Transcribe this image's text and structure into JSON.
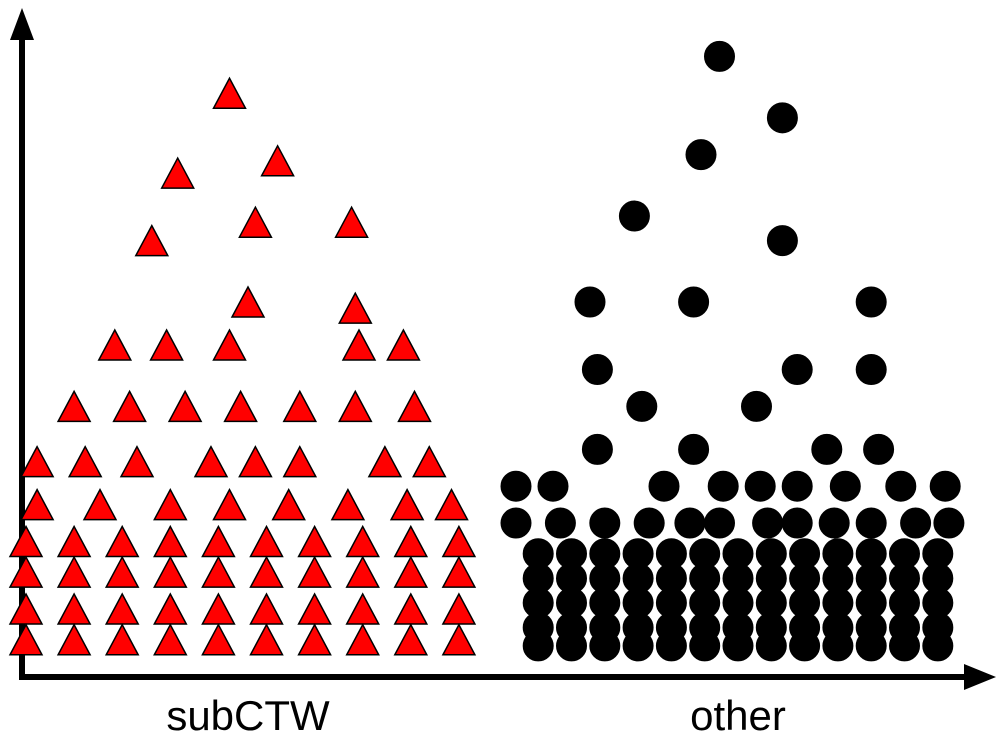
{
  "chart_data": {
    "type": "scatter",
    "title": "",
    "xlabel": "",
    "ylabel": "",
    "categories": [
      "subCTW",
      "other"
    ],
    "ylim": [
      0,
      100
    ],
    "grid": false,
    "legend": "none",
    "axes": {
      "y_ticks_shown": false,
      "x_arrow": true,
      "y_arrow": true
    },
    "series": [
      {
        "category": "subCTW",
        "marker": "triangle",
        "color": "#ff0000",
        "edge_color": "#000000",
        "points": [
          {
            "x": -0.05,
            "y": 91
          },
          {
            "x": -0.19,
            "y": 78
          },
          {
            "x": 0.08,
            "y": 80
          },
          {
            "x": -0.26,
            "y": 67
          },
          {
            "x": 0.02,
            "y": 70
          },
          {
            "x": 0.28,
            "y": 70
          },
          {
            "x": 0.0,
            "y": 57
          },
          {
            "x": 0.29,
            "y": 56
          },
          {
            "x": -0.36,
            "y": 50
          },
          {
            "x": -0.22,
            "y": 50
          },
          {
            "x": -0.05,
            "y": 50
          },
          {
            "x": 0.3,
            "y": 50
          },
          {
            "x": 0.42,
            "y": 50
          },
          {
            "x": -0.47,
            "y": 40
          },
          {
            "x": -0.32,
            "y": 40
          },
          {
            "x": -0.17,
            "y": 40
          },
          {
            "x": -0.02,
            "y": 40
          },
          {
            "x": 0.14,
            "y": 40
          },
          {
            "x": 0.29,
            "y": 40
          },
          {
            "x": 0.45,
            "y": 40
          },
          {
            "x": -0.57,
            "y": 31
          },
          {
            "x": -0.44,
            "y": 31
          },
          {
            "x": -0.3,
            "y": 31
          },
          {
            "x": -0.1,
            "y": 31
          },
          {
            "x": 0.02,
            "y": 31
          },
          {
            "x": 0.14,
            "y": 31
          },
          {
            "x": 0.37,
            "y": 31
          },
          {
            "x": 0.49,
            "y": 31
          },
          {
            "x": -0.57,
            "y": 24
          },
          {
            "x": -0.4,
            "y": 24
          },
          {
            "x": -0.21,
            "y": 24
          },
          {
            "x": -0.05,
            "y": 24
          },
          {
            "x": 0.11,
            "y": 24
          },
          {
            "x": 0.27,
            "y": 24
          },
          {
            "x": 0.43,
            "y": 24
          },
          {
            "x": 0.55,
            "y": 24
          },
          {
            "x": -0.6,
            "y": 18
          },
          {
            "x": -0.47,
            "y": 18
          },
          {
            "x": -0.34,
            "y": 18
          },
          {
            "x": -0.21,
            "y": 18
          },
          {
            "x": -0.08,
            "y": 18
          },
          {
            "x": 0.05,
            "y": 18
          },
          {
            "x": 0.18,
            "y": 18
          },
          {
            "x": 0.31,
            "y": 18
          },
          {
            "x": 0.44,
            "y": 18
          },
          {
            "x": 0.57,
            "y": 18
          },
          {
            "x": -0.6,
            "y": 13
          },
          {
            "x": -0.47,
            "y": 13
          },
          {
            "x": -0.34,
            "y": 13
          },
          {
            "x": -0.21,
            "y": 13
          },
          {
            "x": -0.08,
            "y": 13
          },
          {
            "x": 0.05,
            "y": 13
          },
          {
            "x": 0.18,
            "y": 13
          },
          {
            "x": 0.31,
            "y": 13
          },
          {
            "x": 0.44,
            "y": 13
          },
          {
            "x": 0.57,
            "y": 13
          },
          {
            "x": -0.6,
            "y": 7
          },
          {
            "x": -0.47,
            "y": 7
          },
          {
            "x": -0.34,
            "y": 7
          },
          {
            "x": -0.21,
            "y": 7
          },
          {
            "x": -0.08,
            "y": 7
          },
          {
            "x": 0.05,
            "y": 7
          },
          {
            "x": 0.18,
            "y": 7
          },
          {
            "x": 0.31,
            "y": 7
          },
          {
            "x": 0.44,
            "y": 7
          },
          {
            "x": 0.57,
            "y": 7
          },
          {
            "x": -0.6,
            "y": 2
          },
          {
            "x": -0.47,
            "y": 2
          },
          {
            "x": -0.34,
            "y": 2
          },
          {
            "x": -0.21,
            "y": 2
          },
          {
            "x": -0.08,
            "y": 2
          },
          {
            "x": 0.05,
            "y": 2
          },
          {
            "x": 0.18,
            "y": 2
          },
          {
            "x": 0.31,
            "y": 2
          },
          {
            "x": 0.44,
            "y": 2
          },
          {
            "x": 0.57,
            "y": 2
          }
        ]
      },
      {
        "category": "other",
        "marker": "circle",
        "color": "#000000",
        "edge_color": "#000000",
        "points": [
          {
            "x": -0.05,
            "y": 97
          },
          {
            "x": 0.12,
            "y": 87
          },
          {
            "x": -0.1,
            "y": 81
          },
          {
            "x": -0.28,
            "y": 71
          },
          {
            "x": 0.12,
            "y": 67
          },
          {
            "x": -0.4,
            "y": 57
          },
          {
            "x": -0.12,
            "y": 57
          },
          {
            "x": 0.36,
            "y": 57
          },
          {
            "x": -0.38,
            "y": 46
          },
          {
            "x": 0.16,
            "y": 46
          },
          {
            "x": 0.36,
            "y": 46
          },
          {
            "x": -0.26,
            "y": 40
          },
          {
            "x": 0.05,
            "y": 40
          },
          {
            "x": -0.38,
            "y": 33
          },
          {
            "x": -0.12,
            "y": 33
          },
          {
            "x": 0.24,
            "y": 33
          },
          {
            "x": 0.38,
            "y": 33
          },
          {
            "x": -0.6,
            "y": 27
          },
          {
            "x": -0.5,
            "y": 27
          },
          {
            "x": -0.2,
            "y": 27
          },
          {
            "x": -0.04,
            "y": 27
          },
          {
            "x": 0.06,
            "y": 27
          },
          {
            "x": 0.16,
            "y": 27
          },
          {
            "x": 0.29,
            "y": 27
          },
          {
            "x": 0.44,
            "y": 27
          },
          {
            "x": 0.56,
            "y": 27
          },
          {
            "x": -0.6,
            "y": 21
          },
          {
            "x": -0.48,
            "y": 21
          },
          {
            "x": -0.36,
            "y": 21
          },
          {
            "x": -0.24,
            "y": 21
          },
          {
            "x": -0.13,
            "y": 21
          },
          {
            "x": -0.05,
            "y": 21
          },
          {
            "x": 0.08,
            "y": 21
          },
          {
            "x": 0.16,
            "y": 21
          },
          {
            "x": 0.26,
            "y": 21
          },
          {
            "x": 0.36,
            "y": 21
          },
          {
            "x": 0.48,
            "y": 21
          },
          {
            "x": 0.57,
            "y": 21
          },
          {
            "x": -0.54,
            "y": 16
          },
          {
            "x": -0.45,
            "y": 16
          },
          {
            "x": -0.36,
            "y": 16
          },
          {
            "x": -0.27,
            "y": 16
          },
          {
            "x": -0.18,
            "y": 16
          },
          {
            "x": -0.09,
            "y": 16
          },
          {
            "x": 0.0,
            "y": 16
          },
          {
            "x": 0.09,
            "y": 16
          },
          {
            "x": 0.18,
            "y": 16
          },
          {
            "x": 0.27,
            "y": 16
          },
          {
            "x": 0.36,
            "y": 16
          },
          {
            "x": 0.45,
            "y": 16
          },
          {
            "x": 0.54,
            "y": 16
          },
          {
            "x": -0.54,
            "y": 12
          },
          {
            "x": -0.45,
            "y": 12
          },
          {
            "x": -0.36,
            "y": 12
          },
          {
            "x": -0.27,
            "y": 12
          },
          {
            "x": -0.18,
            "y": 12
          },
          {
            "x": -0.09,
            "y": 12
          },
          {
            "x": 0.0,
            "y": 12
          },
          {
            "x": 0.09,
            "y": 12
          },
          {
            "x": 0.18,
            "y": 12
          },
          {
            "x": 0.27,
            "y": 12
          },
          {
            "x": 0.36,
            "y": 12
          },
          {
            "x": 0.45,
            "y": 12
          },
          {
            "x": 0.54,
            "y": 12
          },
          {
            "x": -0.54,
            "y": 8
          },
          {
            "x": -0.45,
            "y": 8
          },
          {
            "x": -0.36,
            "y": 8
          },
          {
            "x": -0.27,
            "y": 8
          },
          {
            "x": -0.18,
            "y": 8
          },
          {
            "x": -0.09,
            "y": 8
          },
          {
            "x": 0.0,
            "y": 8
          },
          {
            "x": 0.09,
            "y": 8
          },
          {
            "x": 0.18,
            "y": 8
          },
          {
            "x": 0.27,
            "y": 8
          },
          {
            "x": 0.36,
            "y": 8
          },
          {
            "x": 0.45,
            "y": 8
          },
          {
            "x": 0.54,
            "y": 8
          },
          {
            "x": -0.54,
            "y": 4
          },
          {
            "x": -0.45,
            "y": 4
          },
          {
            "x": -0.36,
            "y": 4
          },
          {
            "x": -0.27,
            "y": 4
          },
          {
            "x": -0.18,
            "y": 4
          },
          {
            "x": -0.09,
            "y": 4
          },
          {
            "x": 0.0,
            "y": 4
          },
          {
            "x": 0.09,
            "y": 4
          },
          {
            "x": 0.18,
            "y": 4
          },
          {
            "x": 0.27,
            "y": 4
          },
          {
            "x": 0.36,
            "y": 4
          },
          {
            "x": 0.45,
            "y": 4
          },
          {
            "x": 0.54,
            "y": 4
          },
          {
            "x": -0.54,
            "y": 1
          },
          {
            "x": -0.45,
            "y": 1
          },
          {
            "x": -0.36,
            "y": 1
          },
          {
            "x": -0.27,
            "y": 1
          },
          {
            "x": -0.18,
            "y": 1
          },
          {
            "x": -0.09,
            "y": 1
          },
          {
            "x": 0.0,
            "y": 1
          },
          {
            "x": 0.09,
            "y": 1
          },
          {
            "x": 0.18,
            "y": 1
          },
          {
            "x": 0.27,
            "y": 1
          },
          {
            "x": 0.36,
            "y": 1
          },
          {
            "x": 0.45,
            "y": 1
          },
          {
            "x": 0.54,
            "y": 1
          }
        ]
      }
    ]
  }
}
